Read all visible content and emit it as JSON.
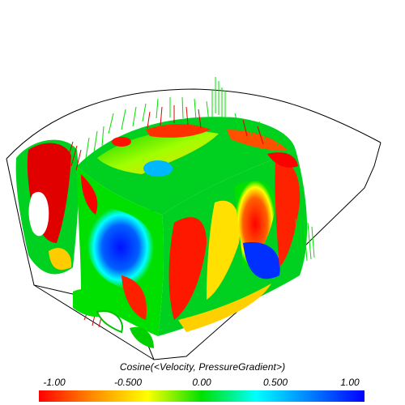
{
  "colorbar": {
    "title": "Cosine(<Velocity, PressureGradient>)",
    "ticks": [
      "-1.00",
      "-0.500",
      "0.00",
      "0.500",
      "1.00"
    ],
    "range": [
      -1.0,
      1.0
    ],
    "colors": [
      "#ff0000",
      "#ff8c00",
      "#ffff00",
      "#00e000",
      "#00ffff",
      "#0080ff",
      "#0000ff"
    ]
  },
  "scene": {
    "glyph_colors": [
      "#ff0000",
      "#00e000"
    ]
  }
}
